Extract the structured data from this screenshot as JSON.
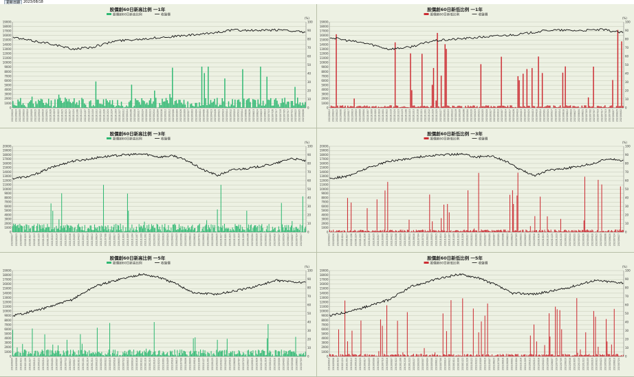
{
  "header": {
    "label": "更新日期",
    "date": "2023/08/18"
  },
  "colors": {
    "high": "#2eb872",
    "low": "#cc2b32",
    "index": "#111111",
    "bg": "#edf1e3",
    "grid": "#b7bda8"
  },
  "chart_data": [
    {
      "id": "p0",
      "type": "bar+line",
      "title": "股價創60日新高比例 一1年",
      "legend": [
        "股價創60日新高比例",
        "收盤價"
      ],
      "color": "#2eb872",
      "unit": "(%)",
      "yleft": [
        0,
        19000
      ],
      "yright": [
        0,
        100
      ],
      "years": 1,
      "seed": 11,
      "barMax": 48,
      "barMean": 12,
      "spikes": 0.08,
      "n": 230,
      "index": {
        "start": 15600,
        "waypoints": [
          [
            0,
            15600
          ],
          [
            0.05,
            15000
          ],
          [
            0.13,
            14200
          ],
          [
            0.2,
            13000
          ],
          [
            0.27,
            13400
          ],
          [
            0.35,
            14800
          ],
          [
            0.45,
            15300
          ],
          [
            0.55,
            15800
          ],
          [
            0.65,
            16300
          ],
          [
            0.75,
            17200
          ],
          [
            0.85,
            17100
          ],
          [
            0.93,
            17300
          ],
          [
            1,
            16600
          ]
        ]
      }
    },
    {
      "id": "p1",
      "type": "bar+line",
      "title": "股價創60日新低比例 一1年",
      "legend": [
        "股價創60日新低比例",
        "收盤價"
      ],
      "color": "#cc2b32",
      "unit": "(%)",
      "yleft": [
        0,
        19000
      ],
      "yright": [
        0,
        100
      ],
      "years": 1,
      "seed": 23,
      "barMax": 100,
      "barMean": 3,
      "spikes": 0.12,
      "n": 230,
      "index": {
        "start": 15600,
        "waypoints": [
          [
            0,
            15600
          ],
          [
            0.05,
            15000
          ],
          [
            0.13,
            14200
          ],
          [
            0.2,
            13000
          ],
          [
            0.27,
            13400
          ],
          [
            0.35,
            14800
          ],
          [
            0.45,
            15300
          ],
          [
            0.55,
            15800
          ],
          [
            0.65,
            16300
          ],
          [
            0.75,
            17200
          ],
          [
            0.85,
            17100
          ],
          [
            0.93,
            17300
          ],
          [
            1,
            16600
          ]
        ]
      }
    },
    {
      "id": "p2",
      "type": "bar+line",
      "title": "股價創60日新高比例 一3年",
      "legend": [
        "股價創60日新高比例",
        "收盤價"
      ],
      "color": "#2eb872",
      "unit": "(%)",
      "yleft": [
        0,
        20000
      ],
      "yright": [
        0,
        100
      ],
      "years": 3,
      "seed": 37,
      "barMax": 55,
      "barMean": 10,
      "spikes": 0.06,
      "n": 330,
      "index": {
        "start": 12500,
        "waypoints": [
          [
            0,
            12500
          ],
          [
            0.06,
            13000
          ],
          [
            0.13,
            15000
          ],
          [
            0.2,
            16500
          ],
          [
            0.26,
            17000
          ],
          [
            0.3,
            17500
          ],
          [
            0.38,
            18000
          ],
          [
            0.45,
            18200
          ],
          [
            0.5,
            17500
          ],
          [
            0.55,
            17800
          ],
          [
            0.6,
            16500
          ],
          [
            0.65,
            14500
          ],
          [
            0.7,
            13200
          ],
          [
            0.75,
            14500
          ],
          [
            0.82,
            15000
          ],
          [
            0.9,
            16000
          ],
          [
            0.95,
            17200
          ],
          [
            1,
            16600
          ]
        ]
      }
    },
    {
      "id": "p3",
      "type": "bar+line",
      "title": "股價創60日新低比例 一3年",
      "legend": [
        "股價創60日新低比例",
        "收盤價"
      ],
      "color": "#cc2b32",
      "unit": "(%)",
      "yleft": [
        0,
        20000
      ],
      "yright": [
        0,
        100
      ],
      "years": 3,
      "seed": 41,
      "barMax": 70,
      "barMean": 3,
      "spikes": 0.13,
      "n": 330,
      "index": {
        "start": 12500,
        "waypoints": [
          [
            0,
            12500
          ],
          [
            0.06,
            13000
          ],
          [
            0.13,
            15000
          ],
          [
            0.2,
            16500
          ],
          [
            0.26,
            17000
          ],
          [
            0.3,
            17500
          ],
          [
            0.38,
            18000
          ],
          [
            0.45,
            18200
          ],
          [
            0.5,
            17500
          ],
          [
            0.55,
            17800
          ],
          [
            0.6,
            16500
          ],
          [
            0.65,
            14500
          ],
          [
            0.7,
            13200
          ],
          [
            0.75,
            14500
          ],
          [
            0.82,
            15000
          ],
          [
            0.9,
            16000
          ],
          [
            0.95,
            17200
          ],
          [
            1,
            16600
          ]
        ]
      }
    },
    {
      "id": "p4",
      "type": "bar+line",
      "title": "股價創60日新高比例 一5年",
      "legend": [
        "股價創60日新高比例",
        "收盤價"
      ],
      "color": "#2eb872",
      "unit": "(%)",
      "yleft": [
        0,
        19000
      ],
      "yright": [
        0,
        100
      ],
      "years": 5,
      "seed": 53,
      "barMax": 40,
      "barMean": 8,
      "spikes": 0.06,
      "n": 330,
      "index": {
        "start": 9000,
        "waypoints": [
          [
            0,
            9000
          ],
          [
            0.1,
            10500
          ],
          [
            0.2,
            12500
          ],
          [
            0.28,
            15500
          ],
          [
            0.36,
            17000
          ],
          [
            0.44,
            18200
          ],
          [
            0.5,
            17500
          ],
          [
            0.56,
            16000
          ],
          [
            0.62,
            14000
          ],
          [
            0.7,
            13800
          ],
          [
            0.8,
            15000
          ],
          [
            0.9,
            16800
          ],
          [
            1,
            16300
          ]
        ]
      }
    },
    {
      "id": "p5",
      "type": "bar+line",
      "title": "股價創60日新低比例 一5年",
      "legend": [
        "股價創60日新低比例",
        "收盤價"
      ],
      "color": "#cc2b32",
      "unit": "(%)",
      "yleft": [
        0,
        19000
      ],
      "yright": [
        0,
        100
      ],
      "years": 5,
      "seed": 67,
      "barMax": 70,
      "barMean": 3,
      "spikes": 0.1,
      "n": 330,
      "index": {
        "start": 9000,
        "waypoints": [
          [
            0,
            9000
          ],
          [
            0.1,
            10500
          ],
          [
            0.2,
            12500
          ],
          [
            0.28,
            15500
          ],
          [
            0.36,
            17000
          ],
          [
            0.44,
            18200
          ],
          [
            0.5,
            17500
          ],
          [
            0.56,
            16000
          ],
          [
            0.62,
            14000
          ],
          [
            0.7,
            13800
          ],
          [
            0.8,
            15000
          ],
          [
            0.9,
            16800
          ],
          [
            1,
            16300
          ]
        ]
      }
    }
  ]
}
